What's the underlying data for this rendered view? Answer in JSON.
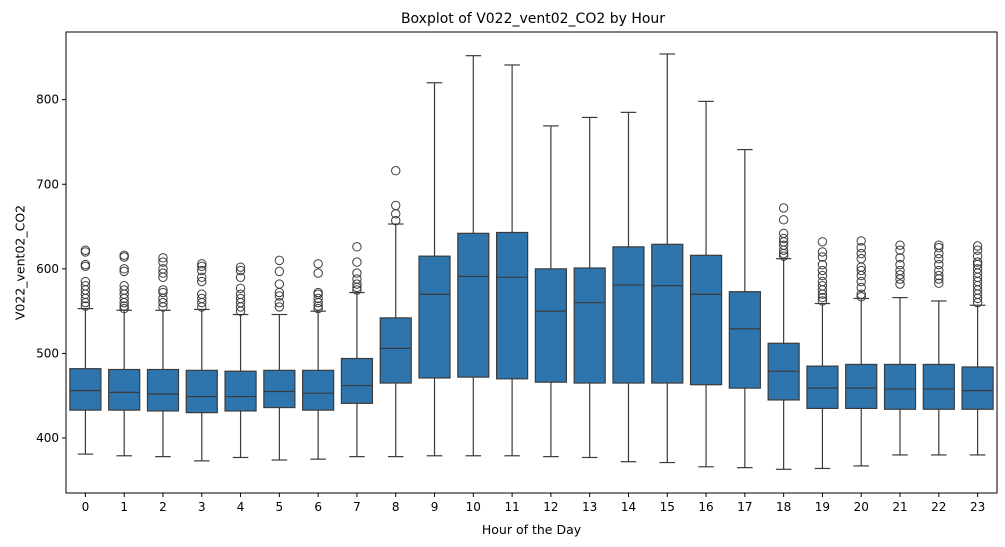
{
  "chart_data": {
    "type": "boxplot",
    "title": "Boxplot of V022_vent02_CO2 by Hour",
    "xlabel": "Hour of the Day",
    "ylabel": "V022_vent02_CO2",
    "ylim": [
      335,
      880
    ],
    "yticks": [
      400,
      500,
      600,
      700,
      800
    ],
    "grid": false,
    "box_color": "#2f75ad",
    "line_color": "#3b3b3b",
    "categories": [
      "0",
      "1",
      "2",
      "3",
      "4",
      "5",
      "6",
      "7",
      "8",
      "9",
      "10",
      "11",
      "12",
      "13",
      "14",
      "15",
      "16",
      "17",
      "18",
      "19",
      "20",
      "21",
      "22",
      "23"
    ],
    "boxes": [
      {
        "min": 381,
        "q1": 433,
        "median": 456,
        "q3": 482,
        "max": 553,
        "outliers": [
          556,
          560,
          565,
          570,
          575,
          580,
          585,
          603,
          605,
          620,
          622
        ]
      },
      {
        "min": 379,
        "q1": 433,
        "median": 454,
        "q3": 481,
        "max": 551,
        "outliers": [
          553,
          556,
          560,
          565,
          570,
          575,
          580,
          597,
          600,
          614,
          616
        ]
      },
      {
        "min": 378,
        "q1": 432,
        "median": 452,
        "q3": 481,
        "max": 551,
        "outliers": [
          555,
          560,
          565,
          572,
          575,
          590,
          595,
          600,
          608,
          613
        ]
      },
      {
        "min": 373,
        "q1": 430,
        "median": 449,
        "q3": 480,
        "max": 552,
        "outliers": [
          555,
          560,
          565,
          570,
          585,
          590,
          598,
          603,
          606
        ]
      },
      {
        "min": 377,
        "q1": 432,
        "median": 449,
        "q3": 479,
        "max": 546,
        "outliers": [
          550,
          555,
          560,
          565,
          570,
          577,
          590,
          598,
          602
        ]
      },
      {
        "min": 374,
        "q1": 436,
        "median": 455,
        "q3": 480,
        "max": 546,
        "outliers": [
          555,
          560,
          568,
          572,
          582,
          597,
          610
        ]
      },
      {
        "min": 375,
        "q1": 433,
        "median": 453,
        "q3": 480,
        "max": 550,
        "outliers": [
          553,
          556,
          560,
          565,
          570,
          572,
          595,
          606
        ]
      },
      {
        "min": 378,
        "q1": 441,
        "median": 462,
        "q3": 494,
        "max": 572,
        "outliers": [
          575,
          578,
          582,
          588,
          595,
          608,
          626
        ]
      },
      {
        "min": 378,
        "q1": 465,
        "median": 506,
        "q3": 542,
        "max": 653,
        "outliers": [
          657,
          665,
          675,
          716
        ]
      },
      {
        "min": 379,
        "q1": 471,
        "median": 570,
        "q3": 615,
        "max": 820,
        "outliers": []
      },
      {
        "min": 379,
        "q1": 472,
        "median": 591,
        "q3": 642,
        "max": 852,
        "outliers": []
      },
      {
        "min": 379,
        "q1": 470,
        "median": 590,
        "q3": 643,
        "max": 841,
        "outliers": []
      },
      {
        "min": 378,
        "q1": 466,
        "median": 550,
        "q3": 600,
        "max": 769,
        "outliers": []
      },
      {
        "min": 377,
        "q1": 465,
        "median": 560,
        "q3": 601,
        "max": 779,
        "outliers": []
      },
      {
        "min": 372,
        "q1": 465,
        "median": 581,
        "q3": 626,
        "max": 785,
        "outliers": []
      },
      {
        "min": 371,
        "q1": 465,
        "median": 580,
        "q3": 629,
        "max": 854,
        "outliers": []
      },
      {
        "min": 366,
        "q1": 463,
        "median": 570,
        "q3": 616,
        "max": 798,
        "outliers": []
      },
      {
        "min": 365,
        "q1": 459,
        "median": 529,
        "q3": 573,
        "max": 741,
        "outliers": []
      },
      {
        "min": 363,
        "q1": 445,
        "median": 479,
        "q3": 512,
        "max": 612,
        "outliers": [
          615,
          618,
          622,
          628,
          632,
          636,
          642,
          658,
          672
        ]
      },
      {
        "min": 364,
        "q1": 435,
        "median": 459,
        "q3": 485,
        "max": 559,
        "outliers": [
          562,
          566,
          570,
          575,
          580,
          585,
          592,
          598,
          605,
          614,
          620,
          632
        ]
      },
      {
        "min": 367,
        "q1": 435,
        "median": 459,
        "q3": 487,
        "max": 565,
        "outliers": [
          567,
          570,
          578,
          585,
          592,
          598,
          602,
          612,
          618,
          625,
          633
        ]
      },
      {
        "min": 380,
        "q1": 434,
        "median": 458,
        "q3": 487,
        "max": 566,
        "outliers": [
          582,
          588,
          593,
          598,
          605,
          613,
          622,
          628
        ]
      },
      {
        "min": 380,
        "q1": 434,
        "median": 458,
        "q3": 487,
        "max": 562,
        "outliers": [
          583,
          588,
          592,
          598,
          605,
          612,
          618,
          625,
          628
        ]
      },
      {
        "min": 380,
        "q1": 434,
        "median": 456,
        "q3": 484,
        "max": 557,
        "outliers": [
          560,
          565,
          570,
          575,
          580,
          585,
          590,
          595,
          600,
          605,
          608,
          615,
          622,
          627
        ]
      }
    ]
  }
}
